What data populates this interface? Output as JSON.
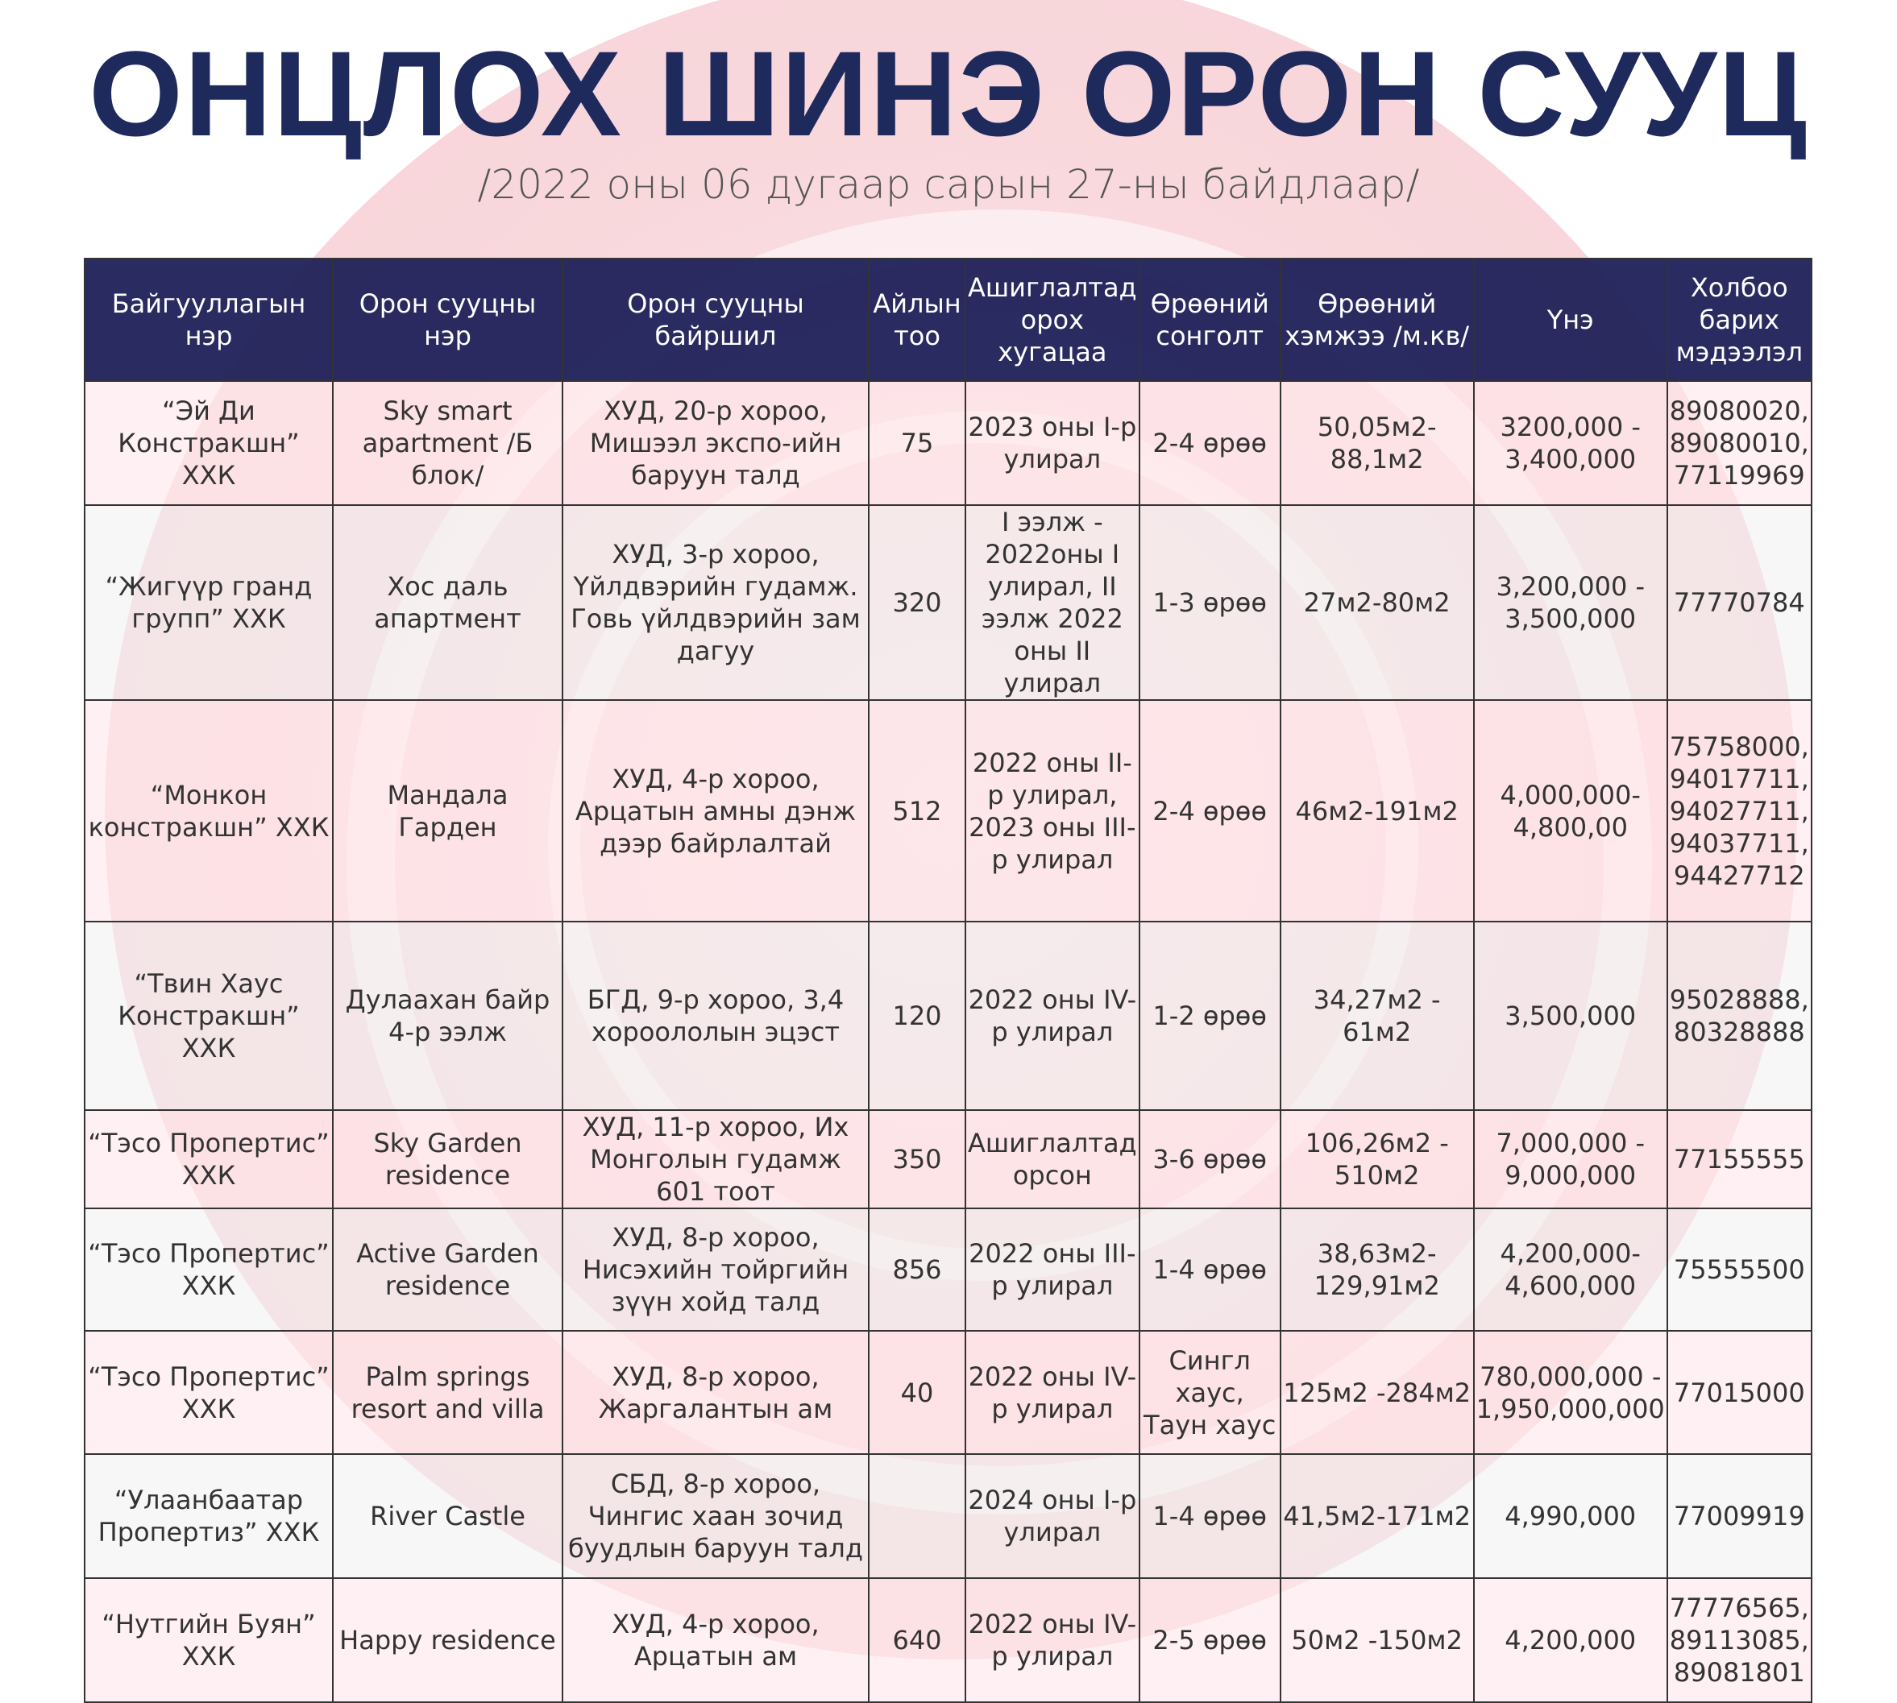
{
  "title": "ОНЦЛОХ ШИНЭ ОРОН СУУЦ",
  "subtitle": "/2022 оны 06 дугаар сарын 27-ны байдлаар/",
  "table": {
    "headers": [
      "Байгууллагын нэр",
      "Орон сууцны нэр",
      "Орон сууцны байршил",
      "Айлын тоо",
      "Ашиглалтад орох хугацаа",
      "Өрөөний сонголт",
      "Өрөөний хэмжээ /м.кв/",
      "Үнэ",
      "Холбоо барих мэдээлэл"
    ],
    "rows": [
      [
        "“Эй Ди Констракшн”   ХХК",
        "Sky smart apartment /Б блок/",
        "ХУД, 20-р хороо, Мишээл экспо-ийн баруун талд",
        "75",
        "2023 оны I-р улирал",
        "2-4 өрөө",
        "50,05м2-88,1м2",
        "3200,000 - 3,400,000",
        "89080020, 89080010, 77119969"
      ],
      [
        "“Жигүүр гранд групп”   ХХК",
        "Хос даль апартмент",
        "ХУД, 3-р хороо, Үйлдвэрийн гудамж. Говь үйлдвэрийн зам дагуу",
        "320",
        "I ээлж - 2022оны I улирал, II ээлж 2022 оны II улирал",
        "1-3 өрөө",
        "27м2-80м2",
        "3,200,000 - 3,500,000",
        "77770784"
      ],
      [
        "“Монкон констракшн”   ХХК",
        "Мандала Гарден",
        "ХУД, 4-р хороо, Арцатын амны дэнж дээр байрлалтай",
        "512",
        "2022 оны II-р улирал, 2023 оны III-р улирал",
        "2-4 өрөө",
        "46м2-191м2",
        "4,000,000-4,800,00",
        "75758000, 94017711, 94027711, 94037711, 94427712"
      ],
      [
        "“Твин Хаус Констракшн”   ХХК",
        "Дулаахан байр 4-р ээлж",
        "БГД, 9-р хороо, 3,4 хороололын эцэст",
        "120",
        "2022 оны IV-р улирал",
        "1-2 өрөө",
        "34,27м2 - 61м2",
        "3,500,000",
        "95028888, 80328888"
      ],
      [
        "“Тэсо Пропертис”   ХХК",
        "Sky Garden residence",
        "ХУД, 11-р хороо, Их Монголын гудамж 601 тоот",
        "350",
        "Ашиглалтад орсон",
        "3-6 өрөө",
        "106,26м2 - 510м2",
        "7,000,000 - 9,000,000",
        "77155555"
      ],
      [
        "“Тэсо Пропертис”   ХХК",
        "Active Garden residence",
        "ХУД, 8-р хороо, Нисэхийн тойргийн зүүн хойд талд",
        "856",
        "2022 оны III-р улирал",
        "1-4 өрөө",
        "38,63м2-129,91м2",
        "4,200,000-4,600,000",
        "75555500"
      ],
      [
        "“Тэсо Пропертис”   ХХК",
        "Palm springs resort and villa",
        "ХУД, 8-р хороо, Жаргалантын ам",
        "40",
        "2022 оны IV-р улирал",
        "Сингл хаус, Таун хаус",
        "125м2 -284м2",
        "780,000,000 - 1,950,000,000",
        "77015000"
      ],
      [
        "“Улаанбаатар Пропертиз”   ХХК",
        "River Castle",
        "СБД, 8-р хороо, Чингис хаан зочид буудлын баруун талд",
        "",
        "2024 оны I-р улирал",
        "1-4 өрөө",
        "41,5м2-171м2",
        "4,990,000",
        "77009919"
      ],
      [
        "“Нутгийн Буян” ХХК",
        "Happy residence",
        "ХУД, 4-р хороо, Арцатын ам",
        "640",
        "2022 оны IV-р улирал",
        "2-5 өрөө",
        "50м2 -150м2",
        "4,200,000",
        "77776565, 89113085, 89081801"
      ]
    ]
  },
  "colors": {
    "title": "#1f2a5c",
    "header_bg": "#1f2158",
    "watermark": "#f6cfd4"
  }
}
